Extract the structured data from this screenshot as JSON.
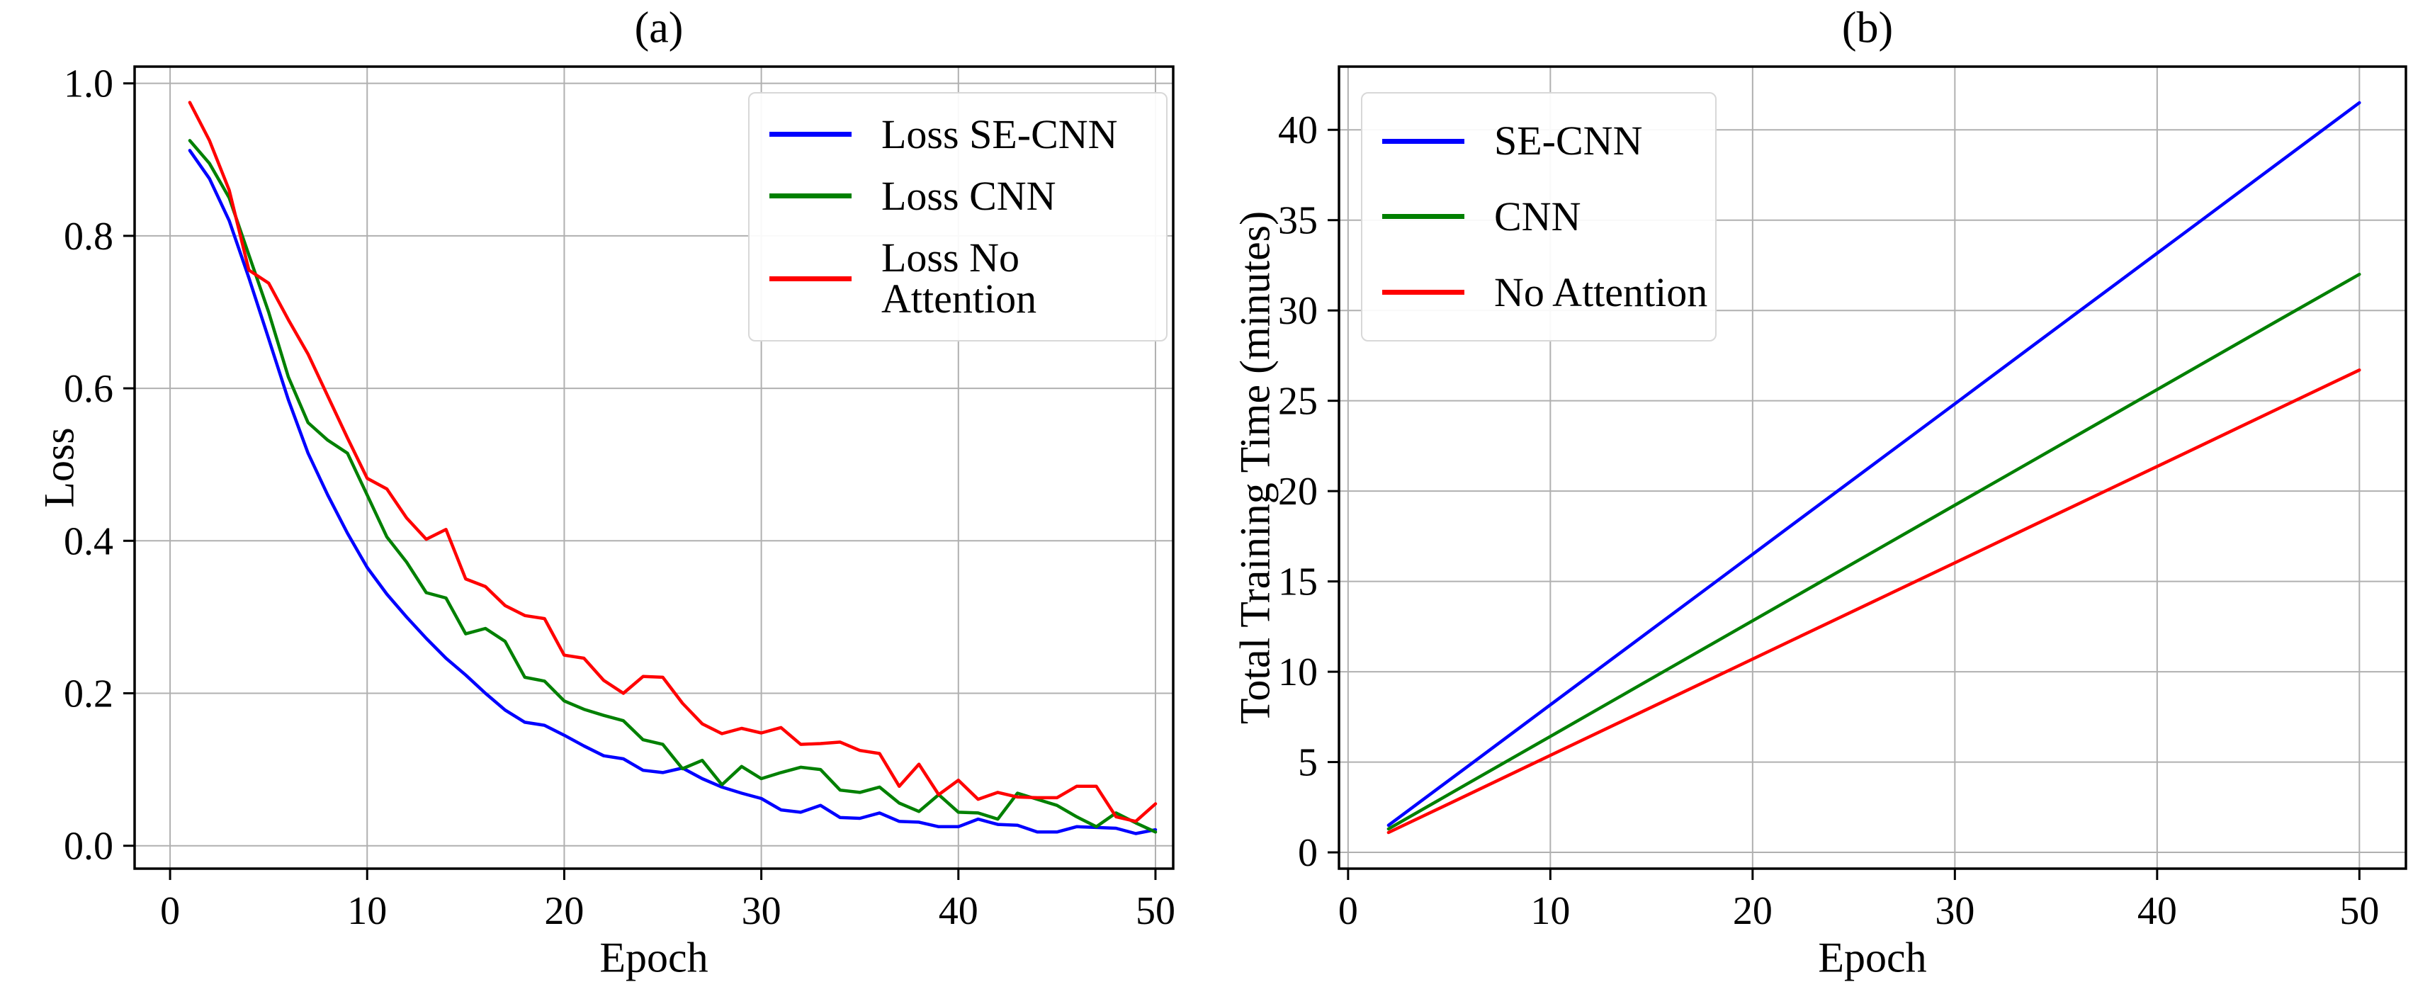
{
  "figure": {
    "background": "#ffffff",
    "grid_color": "#b0b0b0",
    "spine_color": "#000000"
  },
  "chart_data": [
    {
      "id": "a",
      "type": "line",
      "title": "(a)",
      "xlabel": "Epoch",
      "ylabel": "Loss",
      "grid": true,
      "legend_position": "upper right",
      "xlim": [
        -1.8,
        50.9
      ],
      "ylim": [
        -0.03,
        1.022
      ],
      "x_ticks": [
        0,
        10,
        20,
        30,
        40,
        50
      ],
      "x_tick_labels": [
        "0",
        "10",
        "20",
        "30",
        "40",
        "50"
      ],
      "y_ticks": [
        0.0,
        0.2,
        0.4,
        0.6,
        0.8,
        1.0
      ],
      "y_tick_labels": [
        "0.0",
        "0.2",
        "0.4",
        "0.6",
        "0.8",
        "1.0"
      ],
      "x": [
        1,
        2,
        3,
        4,
        5,
        6,
        7,
        8,
        9,
        10,
        11,
        12,
        13,
        14,
        15,
        16,
        17,
        18,
        19,
        20,
        21,
        22,
        23,
        24,
        25,
        26,
        27,
        28,
        29,
        30,
        31,
        32,
        33,
        34,
        35,
        36,
        37,
        38,
        39,
        40,
        41,
        42,
        43,
        44,
        45,
        46,
        47,
        48,
        49,
        50
      ],
      "series": [
        {
          "name": "Loss SE-CNN",
          "color": "#0000ff",
          "values": [
            0.912,
            0.875,
            0.82,
            0.745,
            0.665,
            0.585,
            0.515,
            0.46,
            0.41,
            0.365,
            0.33,
            0.3,
            0.272,
            0.246,
            0.224,
            0.2,
            0.178,
            0.162,
            0.158,
            0.145,
            0.131,
            0.118,
            0.114,
            0.099,
            0.096,
            0.102,
            0.088,
            0.077,
            0.069,
            0.062,
            0.047,
            0.044,
            0.053,
            0.037,
            0.036,
            0.043,
            0.032,
            0.031,
            0.025,
            0.025,
            0.035,
            0.028,
            0.027,
            0.018,
            0.018,
            0.025,
            0.024,
            0.023,
            0.016,
            0.021
          ]
        },
        {
          "name": "Loss CNN",
          "color": "#008000",
          "values": [
            0.925,
            0.895,
            0.85,
            0.775,
            0.7,
            0.615,
            0.555,
            0.532,
            0.515,
            0.46,
            0.405,
            0.372,
            0.332,
            0.325,
            0.278,
            0.285,
            0.268,
            0.221,
            0.216,
            0.19,
            0.179,
            0.171,
            0.164,
            0.139,
            0.133,
            0.101,
            0.112,
            0.08,
            0.104,
            0.088,
            0.096,
            0.103,
            0.1,
            0.073,
            0.07,
            0.077,
            0.056,
            0.045,
            0.067,
            0.044,
            0.043,
            0.035,
            0.069,
            0.061,
            0.053,
            0.038,
            0.025,
            0.043,
            0.03,
            0.018
          ]
        },
        {
          "name": "Loss No Attention",
          "color": "#ff0000",
          "values": [
            0.975,
            0.925,
            0.86,
            0.755,
            0.738,
            0.69,
            0.645,
            0.59,
            0.535,
            0.482,
            0.468,
            0.43,
            0.402,
            0.415,
            0.35,
            0.34,
            0.315,
            0.302,
            0.298,
            0.25,
            0.246,
            0.217,
            0.2,
            0.222,
            0.221,
            0.187,
            0.16,
            0.147,
            0.154,
            0.148,
            0.155,
            0.133,
            0.134,
            0.136,
            0.125,
            0.121,
            0.078,
            0.107,
            0.067,
            0.086,
            0.061,
            0.07,
            0.064,
            0.063,
            0.063,
            0.078,
            0.078,
            0.038,
            0.032,
            0.055
          ]
        }
      ]
    },
    {
      "id": "b",
      "type": "line",
      "title": "(b)",
      "xlabel": "Epoch",
      "ylabel": "Total Training Time (minutes)",
      "grid": true,
      "legend_position": "upper left",
      "xlim": [
        -0.45,
        52.3
      ],
      "ylim": [
        -0.9,
        43.5
      ],
      "x_ticks": [
        0,
        10,
        20,
        30,
        40,
        50
      ],
      "x_tick_labels": [
        "0",
        "10",
        "20",
        "30",
        "40",
        "50"
      ],
      "y_ticks": [
        0,
        5,
        10,
        15,
        20,
        25,
        30,
        35,
        40
      ],
      "y_tick_labels": [
        "0",
        "5",
        "10",
        "15",
        "20",
        "25",
        "30",
        "35",
        "40"
      ],
      "x": [
        2,
        6,
        10,
        14,
        18,
        22,
        26,
        30,
        34,
        38,
        42,
        46,
        50
      ],
      "series": [
        {
          "name": "SE-CNN",
          "color": "#0000ff",
          "values": [
            1.5,
            4.83,
            8.17,
            11.5,
            14.83,
            18.17,
            21.5,
            24.83,
            28.17,
            31.5,
            34.83,
            38.17,
            41.5
          ]
        },
        {
          "name": "CNN",
          "color": "#008000",
          "values": [
            1.3,
            3.86,
            6.42,
            8.98,
            11.54,
            14.1,
            16.66,
            19.22,
            21.78,
            24.34,
            26.9,
            29.46,
            32.0
          ]
        },
        {
          "name": "No Attention",
          "color": "#ff0000",
          "values": [
            1.1,
            3.23,
            5.37,
            7.5,
            9.63,
            11.77,
            13.9,
            16.03,
            18.17,
            20.3,
            22.43,
            24.57,
            26.7
          ]
        }
      ]
    }
  ]
}
